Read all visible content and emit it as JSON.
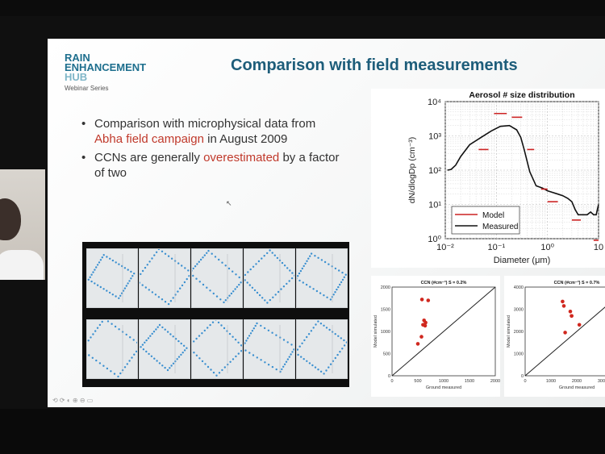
{
  "brand": {
    "line1": "RAIN",
    "line2": "ENHANCEMENT",
    "line3": "HUB",
    "subtitle": "Webinar Series"
  },
  "slide": {
    "title": "Comparison with field measurements",
    "bullet1": {
      "pre": "Comparison with microphysical data from ",
      "highlight": "Abha field campaign",
      "post": " in August 2009"
    },
    "bullet2": {
      "pre": "CCNs are generally ",
      "highlight": "overestimated",
      "post": " by a factor of two"
    },
    "footer_icons": "⟲ ⟳ ◐ ⊕ ⊖ ▭"
  },
  "colors": {
    "accent_title": "#1d5d7a",
    "highlight": "#c0392b",
    "model": "#cc2222",
    "measured": "#111111"
  },
  "chart_data": [
    {
      "type": "line",
      "title": "Aerosol # size distribution",
      "xlabel": "Diameter (μm)",
      "ylabel": "dN/dlogDp (cm⁻³)",
      "xscale": "log",
      "yscale": "log",
      "xlim": [
        0.01,
        10
      ],
      "ylim": [
        1,
        10000
      ],
      "xticks": [
        "10⁻²",
        "10⁻¹",
        "10⁰",
        "10"
      ],
      "yticks": [
        "10⁰",
        "10¹",
        "10²",
        "10³",
        "10⁴"
      ],
      "legend": {
        "position": "bottom-left",
        "entries": [
          "Model",
          "Measured"
        ]
      },
      "series": [
        {
          "name": "Measured",
          "x": [
            0.011,
            0.013,
            0.016,
            0.02,
            0.03,
            0.05,
            0.08,
            0.12,
            0.18,
            0.25,
            0.3,
            0.35,
            0.45,
            0.6,
            0.8,
            1.0,
            1.3,
            1.6,
            2.0,
            2.5,
            3.0,
            3.5,
            4.0,
            5.0,
            6.0,
            7.0,
            8.0,
            9.0,
            10.0
          ],
          "y": [
            100,
            105,
            140,
            250,
            550,
            900,
            1400,
            1900,
            2000,
            1500,
            900,
            400,
            90,
            35,
            30,
            25,
            22,
            20,
            18,
            15,
            12,
            7,
            5,
            5,
            5,
            6,
            5,
            5,
            10
          ]
        },
        {
          "name": "Model",
          "bins": [
            [
              0.045,
              0.07,
              400
            ],
            [
              0.09,
              0.16,
              4500
            ],
            [
              0.2,
              0.32,
              3500
            ],
            [
              0.4,
              0.55,
              400
            ],
            [
              0.75,
              1.0,
              28
            ],
            [
              1.0,
              1.6,
              12
            ],
            [
              3.0,
              4.5,
              3.5
            ],
            [
              8.0,
              10.0,
              0.9
            ]
          ]
        }
      ]
    },
    {
      "type": "scatter",
      "title": "CCN (#cm⁻³) S = 0.2%",
      "xlabel": "Ground measured",
      "ylabel": "Model simulated",
      "xlim": [
        0,
        2000
      ],
      "ylim": [
        0,
        2000
      ],
      "xticks": [
        "0",
        "500",
        "1000",
        "1500",
        "2000"
      ],
      "yticks": [
        "0",
        "500",
        "1000",
        "1500",
        "2000"
      ],
      "x": [
        500,
        570,
        600,
        620,
        650,
        640,
        700,
        580
      ],
      "y": [
        720,
        880,
        1150,
        1250,
        1200,
        1130,
        1700,
        1720
      ]
    },
    {
      "type": "scatter",
      "title": "CCN (#cm⁻³) S = 0.7%",
      "xlabel": "Ground measured",
      "ylabel": "Model simulated",
      "xlim": [
        0,
        4000
      ],
      "ylim": [
        0,
        4000
      ],
      "xticks": [
        "0",
        "1000",
        "2000",
        "3000",
        "4000"
      ],
      "yticks": [
        "0",
        "1000",
        "2000",
        "3000",
        "4000"
      ],
      "x": [
        1450,
        1500,
        1750,
        1800,
        1800,
        2100,
        1550
      ],
      "y": [
        3350,
        3150,
        2900,
        2700,
        2700,
        2300,
        1950
      ]
    }
  ]
}
